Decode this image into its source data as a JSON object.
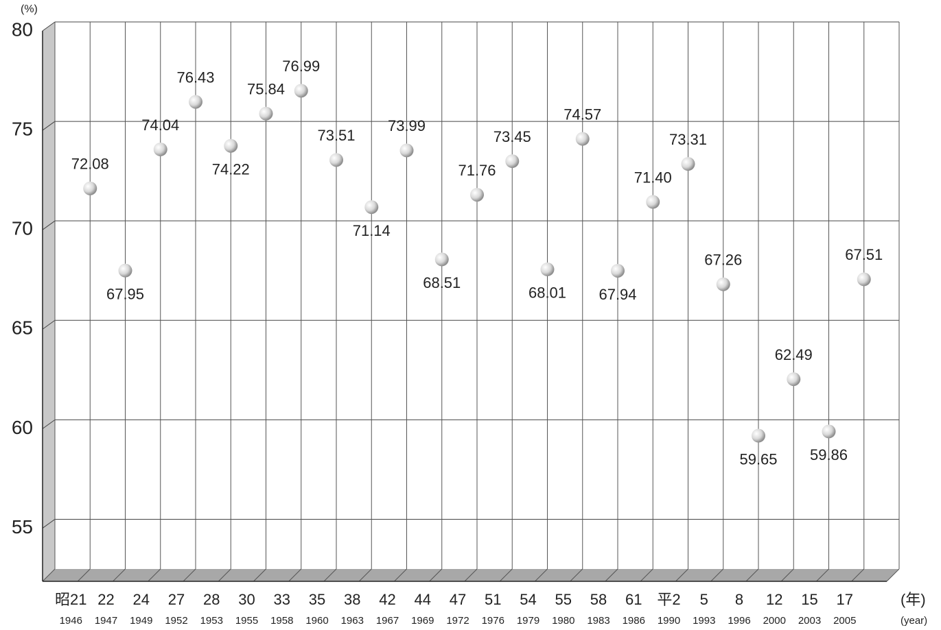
{
  "chart_data": {
    "type": "line",
    "y_label": "(%)",
    "x_label": "(年)",
    "x_label_en": "(year)",
    "categories": [
      "昭21",
      "22",
      "24",
      "27",
      "28",
      "30",
      "33",
      "35",
      "38",
      "42",
      "44",
      "47",
      "51",
      "54",
      "55",
      "58",
      "61",
      "平2",
      "5",
      "8",
      "12",
      "15",
      "17"
    ],
    "years": [
      1946,
      1947,
      1949,
      1952,
      1953,
      1955,
      1958,
      1960,
      1963,
      1967,
      1969,
      1972,
      1976,
      1979,
      1980,
      1983,
      1986,
      1990,
      1993,
      1996,
      2000,
      2003,
      2005
    ],
    "series": [
      {
        "color": "#b5b5b5",
        "values": [
          72.08,
          67.95,
          74.04,
          76.43,
          74.22,
          75.84,
          76.99,
          73.51,
          71.14,
          73.99,
          68.51,
          71.76,
          73.45,
          68.01,
          74.57,
          67.94,
          71.4,
          73.31,
          67.26,
          59.65,
          62.49,
          59.86,
          67.51
        ],
        "value_labels": [
          "72.08",
          "67.95",
          "74.04",
          "76.43",
          "74.22",
          "75.84",
          "76.99",
          "73.51",
          "71.14",
          "73.99",
          "68.51",
          "71.76",
          "73.45",
          "68.01",
          "74.57",
          "67.94",
          "71.40",
          "73.31",
          "67.26",
          "59.65",
          "62.49",
          "59.86",
          "67.51"
        ]
      }
    ],
    "ylim": [
      52.5,
      80
    ],
    "yticks": [
      55,
      60,
      65,
      70,
      75,
      80
    ],
    "grid": true
  }
}
